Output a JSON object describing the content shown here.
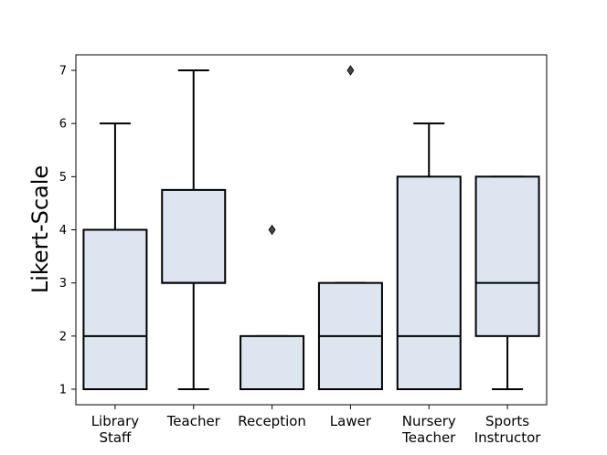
{
  "chart_data": {
    "type": "box",
    "ylabel": "Likert-Scale",
    "xlabel": "",
    "title": "",
    "ylim": [
      0.75,
      7.3
    ],
    "yticks": [
      1,
      2,
      3,
      4,
      5,
      6,
      7
    ],
    "grid": false,
    "box_fill": "#dde6f0",
    "categories": [
      {
        "lines": [
          "Library",
          "Staff"
        ],
        "whisker_low": 1,
        "q1": 1,
        "median": 2,
        "q3": 4,
        "whisker_high": 6,
        "outliers": []
      },
      {
        "lines": [
          "Teacher"
        ],
        "whisker_low": 1,
        "q1": 3,
        "median": 3,
        "q3": 4.75,
        "whisker_high": 7,
        "outliers": []
      },
      {
        "lines": [
          "Reception"
        ],
        "whisker_low": 1,
        "q1": 1,
        "median": 1,
        "q3": 2,
        "whisker_high": 2,
        "outliers": [
          4
        ]
      },
      {
        "lines": [
          "Lawer"
        ],
        "whisker_low": 1,
        "q1": 1,
        "median": 2,
        "q3": 3,
        "whisker_high": 3,
        "outliers": [
          7
        ]
      },
      {
        "lines": [
          "Nursery",
          "Teacher"
        ],
        "whisker_low": 1,
        "q1": 1,
        "median": 2,
        "q3": 5,
        "whisker_high": 6,
        "outliers": []
      },
      {
        "lines": [
          "Sports",
          "Instructor"
        ],
        "whisker_low": 1,
        "q1": 2,
        "median": 3,
        "q3": 5,
        "whisker_high": 5,
        "outliers": []
      }
    ]
  }
}
